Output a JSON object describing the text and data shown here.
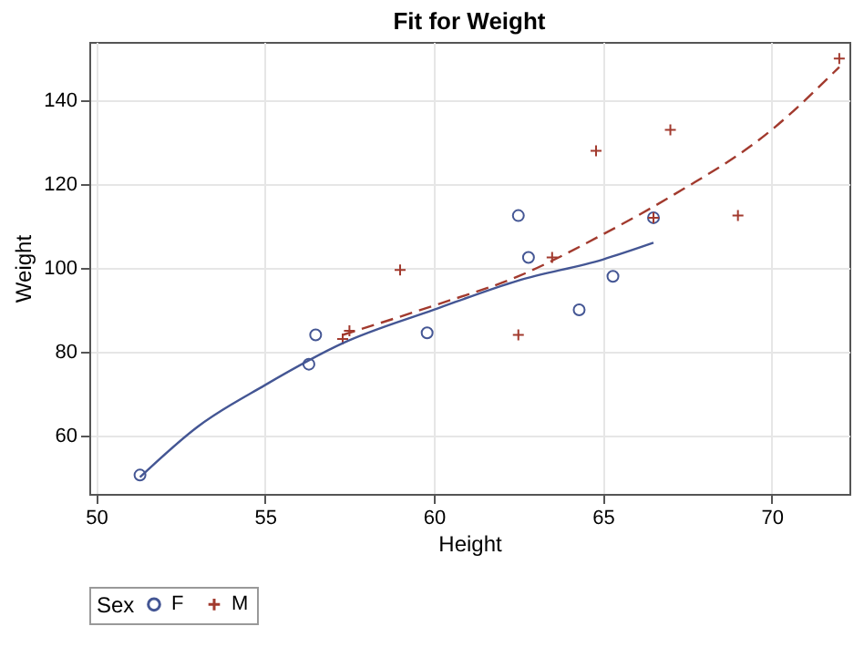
{
  "chart_data": {
    "type": "scatter",
    "title": "Fit for Weight",
    "xlabel": "Height",
    "ylabel": "Weight",
    "legend_title": "Sex",
    "legend": "bottom",
    "grid": true,
    "xlim": [
      49.8,
      72.3
    ],
    "xticks": [
      50,
      55,
      60,
      65,
      70
    ],
    "ylim": [
      46,
      154
    ],
    "yticks": [
      60,
      80,
      100,
      120,
      140
    ],
    "series": [
      {
        "name": "F",
        "marker": "circle",
        "color": "#445694",
        "x": [
          56.5,
          65.3,
          62.8,
          59.8,
          62.5,
          51.3,
          64.3,
          56.3,
          66.5
        ],
        "values": [
          84,
          98,
          102.5,
          84.5,
          112.5,
          50.5,
          90,
          77,
          112
        ]
      },
      {
        "name": "M",
        "marker": "cross",
        "color": "#a23a2e",
        "x": [
          69,
          63.5,
          57.3,
          62.5,
          59,
          72,
          64.8,
          67,
          57.5,
          66.5
        ],
        "values": [
          112.5,
          102.5,
          83,
          84,
          99.5,
          150,
          128,
          133,
          85,
          112
        ]
      },
      {
        "type": "line",
        "line_style": "solid",
        "color": "#445694",
        "x": [
          51.3,
          53,
          55,
          57.3,
          60,
          62.5,
          65,
          66.5
        ],
        "values": [
          50,
          62,
          72,
          82,
          90,
          97,
          102,
          106
        ]
      },
      {
        "type": "line",
        "line_style": "dashed",
        "color": "#a23a2e",
        "x": [
          57.3,
          60,
          62.5,
          65,
          67,
          70,
          72
        ],
        "values": [
          84,
          91,
          98,
          108,
          117,
          133,
          148
        ]
      }
    ]
  }
}
